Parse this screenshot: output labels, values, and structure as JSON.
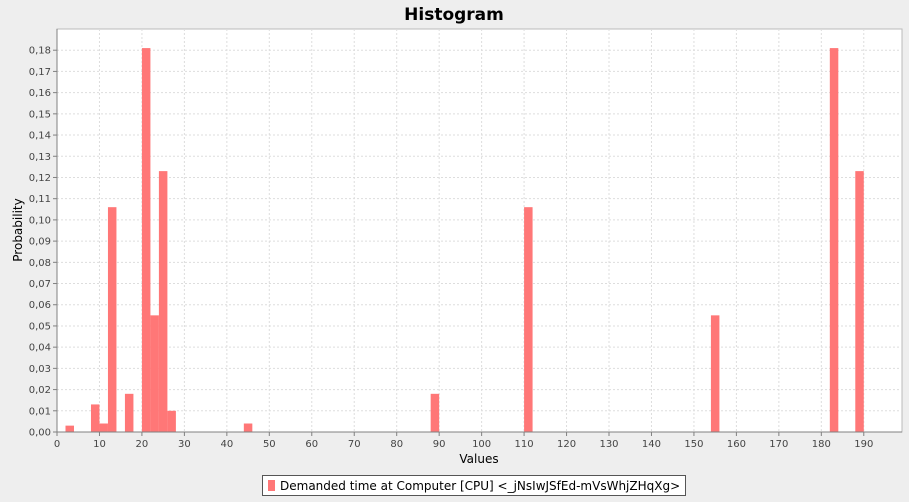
{
  "chart_data": {
    "type": "bar",
    "title": "Histogram",
    "xlabel": "Values",
    "ylabel": "Probability",
    "xlim": [
      0,
      199
    ],
    "ylim": [
      0,
      0.19
    ],
    "x_ticks": [
      0,
      10,
      20,
      30,
      40,
      50,
      60,
      70,
      80,
      90,
      100,
      110,
      120,
      130,
      140,
      150,
      160,
      170,
      180,
      190
    ],
    "x_tick_labels": [
      "0",
      "10",
      "20",
      "30",
      "40",
      "50",
      "60",
      "70",
      "80",
      "90",
      "100",
      "110",
      "120",
      "130",
      "140",
      "150",
      "160",
      "170",
      "180",
      "190"
    ],
    "y_ticks": [
      0,
      0.01,
      0.02,
      0.03,
      0.04,
      0.05,
      0.06,
      0.07,
      0.08,
      0.09,
      0.1,
      0.11,
      0.12,
      0.13,
      0.14,
      0.15,
      0.16,
      0.17,
      0.18
    ],
    "y_tick_labels": [
      "0,00",
      "0,01",
      "0,02",
      "0,03",
      "0,04",
      "0,05",
      "0,06",
      "0,07",
      "0,08",
      "0,09",
      "0,10",
      "0,11",
      "0,12",
      "0,13",
      "0,14",
      "0,15",
      "0,16",
      "0,17",
      "0,18"
    ],
    "bin_width": 2,
    "grid": true,
    "legend_position": "bottom",
    "bar_color": "#ff7777",
    "series": [
      {
        "name": "Demanded time at Computer [CPU] <_jNsIwJSfEd-mVsWhjZHqXg>",
        "bins": [
          {
            "x": 3,
            "value": 0.003
          },
          {
            "x": 9,
            "value": 0.013
          },
          {
            "x": 11,
            "value": 0.004
          },
          {
            "x": 13,
            "value": 0.106
          },
          {
            "x": 17,
            "value": 0.018
          },
          {
            "x": 21,
            "value": 0.181
          },
          {
            "x": 23,
            "value": 0.055
          },
          {
            "x": 25,
            "value": 0.123
          },
          {
            "x": 27,
            "value": 0.01
          },
          {
            "x": 45,
            "value": 0.004
          },
          {
            "x": 89,
            "value": 0.018
          },
          {
            "x": 111,
            "value": 0.106
          },
          {
            "x": 155,
            "value": 0.055
          },
          {
            "x": 183,
            "value": 0.181
          },
          {
            "x": 189,
            "value": 0.123
          }
        ]
      }
    ]
  }
}
